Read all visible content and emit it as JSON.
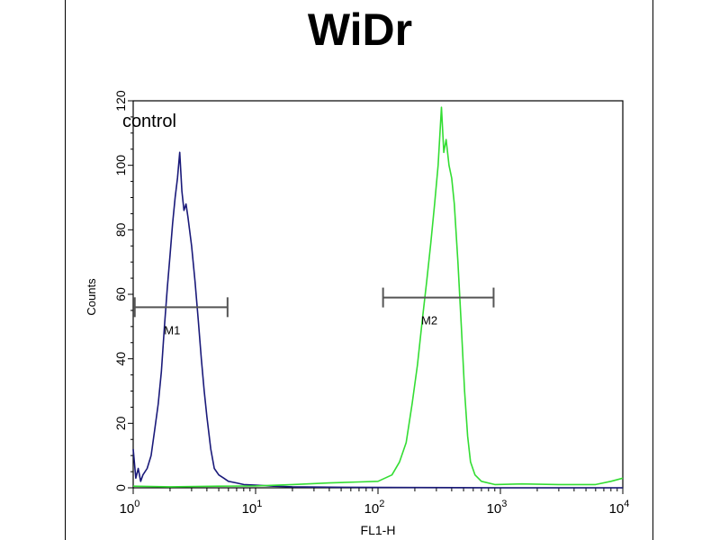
{
  "chart_data": {
    "type": "line",
    "title": "WiDr",
    "xlabel": "FL1-H",
    "ylabel": "Counts",
    "x_scale": "log",
    "xlim": [
      1,
      10000
    ],
    "ylim": [
      0,
      120
    ],
    "y_ticks": [
      "0",
      "20",
      "40",
      "60",
      "80",
      "100",
      "120"
    ],
    "x_ticks": [
      {
        "base": "10",
        "exp": "0",
        "value": 1
      },
      {
        "base": "10",
        "exp": "1",
        "value": 10
      },
      {
        "base": "10",
        "exp": "2",
        "value": 100
      },
      {
        "base": "10",
        "exp": "3",
        "value": 1000
      },
      {
        "base": "10",
        "exp": "4",
        "value": 10000
      }
    ],
    "grid": false,
    "annotations": [
      {
        "text": "control",
        "x": 1.5,
        "y": 113
      }
    ],
    "markers": [
      {
        "label": "M1",
        "x_start": 1.03,
        "x_end": 5.9,
        "y": 56
      },
      {
        "label": "M2",
        "x_start": 110,
        "x_end": 880,
        "y": 59
      }
    ],
    "series": [
      {
        "color": "#1a1a7a",
        "points": [
          [
            1.0,
            12
          ],
          [
            1.05,
            3
          ],
          [
            1.1,
            6
          ],
          [
            1.15,
            2
          ],
          [
            1.2,
            4
          ],
          [
            1.3,
            6
          ],
          [
            1.4,
            10
          ],
          [
            1.5,
            18
          ],
          [
            1.6,
            26
          ],
          [
            1.7,
            36
          ],
          [
            1.8,
            50
          ],
          [
            1.9,
            62
          ],
          [
            2.0,
            72
          ],
          [
            2.1,
            82
          ],
          [
            2.2,
            90
          ],
          [
            2.3,
            96
          ],
          [
            2.4,
            104
          ],
          [
            2.5,
            92
          ],
          [
            2.6,
            86
          ],
          [
            2.7,
            88
          ],
          [
            2.8,
            84
          ],
          [
            3.0,
            75
          ],
          [
            3.2,
            64
          ],
          [
            3.4,
            52
          ],
          [
            3.6,
            40
          ],
          [
            3.8,
            30
          ],
          [
            4.0,
            22
          ],
          [
            4.3,
            12
          ],
          [
            4.6,
            6
          ],
          [
            5.0,
            4
          ],
          [
            5.5,
            3
          ],
          [
            6.0,
            2
          ],
          [
            7,
            1.5
          ],
          [
            8,
            1
          ],
          [
            10,
            0.8
          ],
          [
            14,
            0.5
          ],
          [
            20,
            0.3
          ],
          [
            40,
            0.2
          ],
          [
            100,
            0.1
          ],
          [
            1000,
            0
          ],
          [
            10000,
            0
          ]
        ]
      },
      {
        "color": "#33dd33",
        "points": [
          [
            1.0,
            0.5
          ],
          [
            2,
            0.3
          ],
          [
            5,
            0.5
          ],
          [
            10,
            0.6
          ],
          [
            20,
            1
          ],
          [
            40,
            1.5
          ],
          [
            70,
            1.8
          ],
          [
            100,
            2
          ],
          [
            130,
            4
          ],
          [
            150,
            8
          ],
          [
            170,
            14
          ],
          [
            190,
            26
          ],
          [
            210,
            38
          ],
          [
            230,
            52
          ],
          [
            250,
            64
          ],
          [
            270,
            76
          ],
          [
            290,
            88
          ],
          [
            310,
            100
          ],
          [
            330,
            118
          ],
          [
            345,
            104
          ],
          [
            360,
            108
          ],
          [
            380,
            100
          ],
          [
            400,
            96
          ],
          [
            420,
            88
          ],
          [
            450,
            70
          ],
          [
            480,
            50
          ],
          [
            510,
            30
          ],
          [
            540,
            16
          ],
          [
            570,
            8
          ],
          [
            620,
            4
          ],
          [
            700,
            2
          ],
          [
            900,
            1
          ],
          [
            1500,
            1.2
          ],
          [
            3000,
            1
          ],
          [
            6000,
            1
          ],
          [
            8000,
            2
          ],
          [
            10000,
            3
          ]
        ]
      }
    ]
  }
}
